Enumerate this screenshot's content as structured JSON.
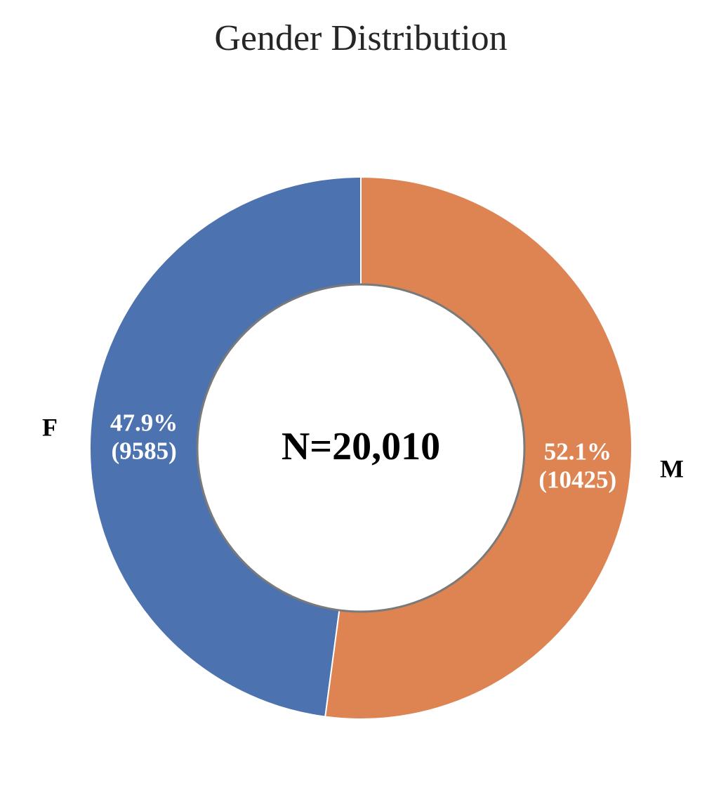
{
  "chart_data": {
    "type": "pie",
    "variant": "donut",
    "title": "Gender Distribution",
    "center_label": "N=20,010",
    "categories": [
      "F",
      "M"
    ],
    "values": [
      9585,
      10425
    ],
    "percent_labels": [
      "47.9%",
      "52.1%"
    ],
    "count_labels": [
      "(9585)",
      "(10425)"
    ],
    "colors": [
      "#4C72B0",
      "#DD8452"
    ],
    "start_angle": "12 o'clock",
    "direction": "counterclockwise",
    "legend": "none"
  }
}
